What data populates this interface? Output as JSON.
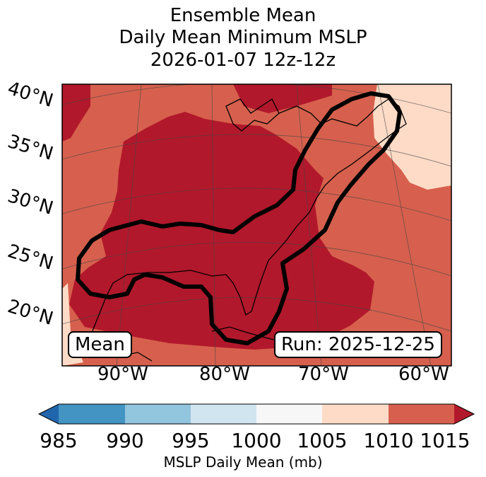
{
  "title": {
    "line1": "Ensemble Mean",
    "line2": "Daily Mean Minimum MSLP",
    "line3": "2026-01-07 12z-12z"
  },
  "map": {
    "lat_labels": [
      "40°N",
      "35°N",
      "30°N",
      "25°N",
      "20°N"
    ],
    "lon_labels": [
      "90°W",
      "80°W",
      "70°W",
      "60°W"
    ],
    "left_box": "Mean",
    "right_box": "Run: 2025-12-25",
    "contour_color": "#000000",
    "coastline_color": "#000000"
  },
  "colorbar": {
    "ticks": [
      "985",
      "990",
      "995",
      "1000",
      "1005",
      "1010",
      "1015"
    ],
    "colors": [
      "#2166ac",
      "#4393c3",
      "#92c5de",
      "#d1e5f0",
      "#f7f7f7",
      "#fddbc7",
      "#d6604d",
      "#b2182b"
    ],
    "label": "MSLP Daily Mean (mb)"
  }
}
